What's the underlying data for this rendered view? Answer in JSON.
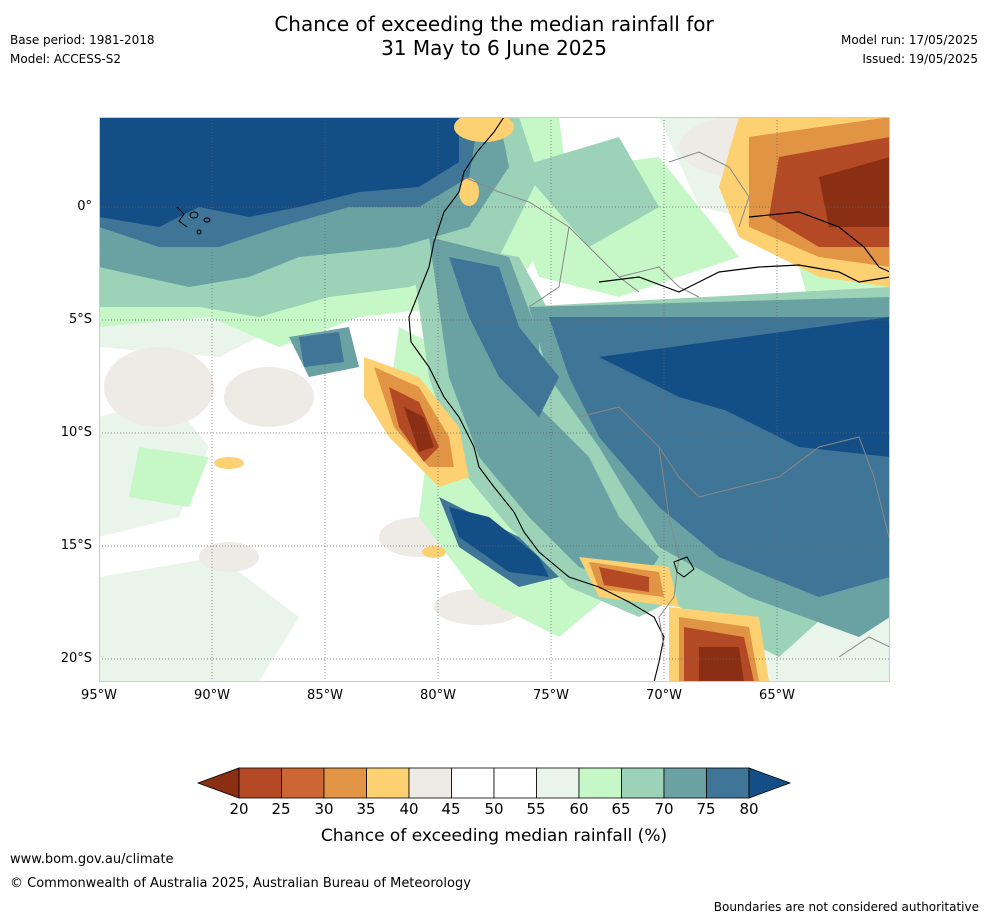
{
  "title": {
    "line1": "Chance of exceeding the median rainfall for",
    "line2": "31 May to 6 June 2025"
  },
  "meta_left": {
    "base_period": "Base period: 1981-2018",
    "model": "Model: ACCESS-S2"
  },
  "meta_right": {
    "model_run": "Model run: 17/05/2025",
    "issued": "Issued: 19/05/2025"
  },
  "map": {
    "lat_labels": [
      "0°",
      "5°S",
      "10°S",
      "15°S",
      "20°S"
    ],
    "lon_labels": [
      "95°W",
      "90°W",
      "85°W",
      "80°W",
      "75°W",
      "70°W",
      "65°W"
    ],
    "lat_range": [
      -21,
      4
    ],
    "lon_range": [
      -95,
      -60
    ],
    "grid": "dotted"
  },
  "colorbar": {
    "title": "Chance of exceeding median rainfall (%)",
    "ticks": [
      "20",
      "25",
      "30",
      "35",
      "40",
      "45",
      "50",
      "55",
      "60",
      "65",
      "70",
      "75",
      "80"
    ],
    "colors": [
      "#8a2e14",
      "#b34a25",
      "#cc6633",
      "#e09444",
      "#fdd072",
      "#eeebe6",
      "#ffffff",
      "#ffffff",
      "#e9f5ea",
      "#c6f7c6",
      "#9bd2b8",
      "#6aa1a3",
      "#3f7597",
      "#134e87"
    ]
  },
  "footer": {
    "website": "www.bom.gov.au/climate",
    "copyright": "© Commonwealth of Australia 2025, Australian Bureau of Meteorology",
    "disclaimer": "Boundaries are not considered authoritative"
  }
}
